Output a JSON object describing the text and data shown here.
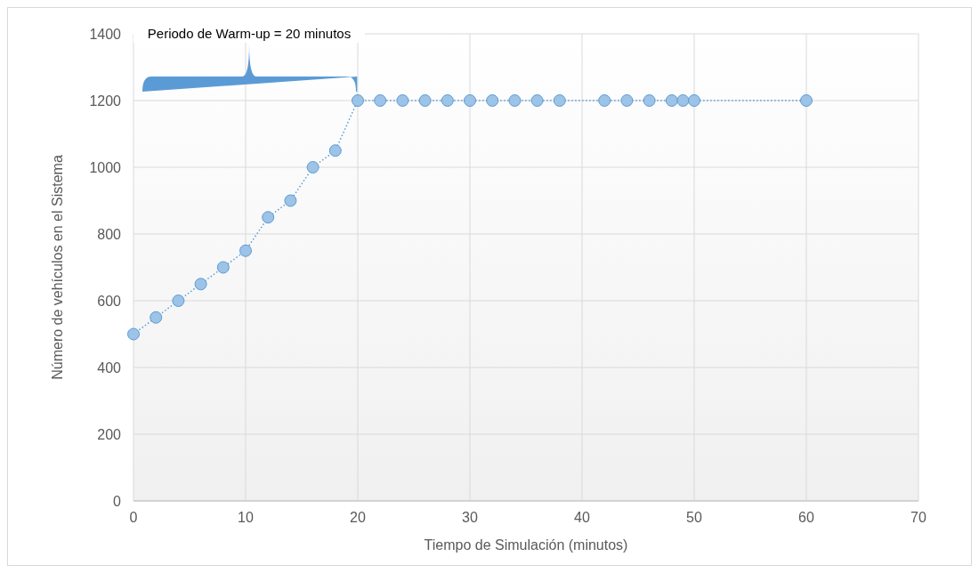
{
  "chart_data": {
    "type": "line",
    "xlabel": "Tiempo de Simulación (minutos)",
    "ylabel": "Número de vehículos en el Sistema",
    "annotations": [
      "Periodo de Warm-up = 20 minutos"
    ],
    "xlim": [
      0,
      70
    ],
    "xticks": [
      0,
      10,
      20,
      30,
      40,
      50,
      60,
      70
    ],
    "ylim": [
      0,
      1400
    ],
    "yticks": [
      0,
      200,
      400,
      600,
      800,
      1000,
      1200,
      1400
    ],
    "grid": true,
    "marker": "circle",
    "line_style": "dotted",
    "series": [
      {
        "color": "#5b9bd5",
        "x": [
          0,
          2,
          4,
          6,
          8,
          10,
          12,
          14,
          16,
          18,
          20,
          22,
          24,
          26,
          28,
          30,
          32,
          34,
          36,
          38,
          42,
          44,
          46,
          48,
          49,
          50,
          60
        ],
        "values": [
          500,
          550,
          600,
          650,
          700,
          750,
          850,
          900,
          1000,
          1050,
          1200,
          1200,
          1200,
          1200,
          1200,
          1200,
          1200,
          1200,
          1200,
          1200,
          1200,
          1200,
          1200,
          1200,
          1200,
          1200,
          1200
        ]
      }
    ]
  }
}
